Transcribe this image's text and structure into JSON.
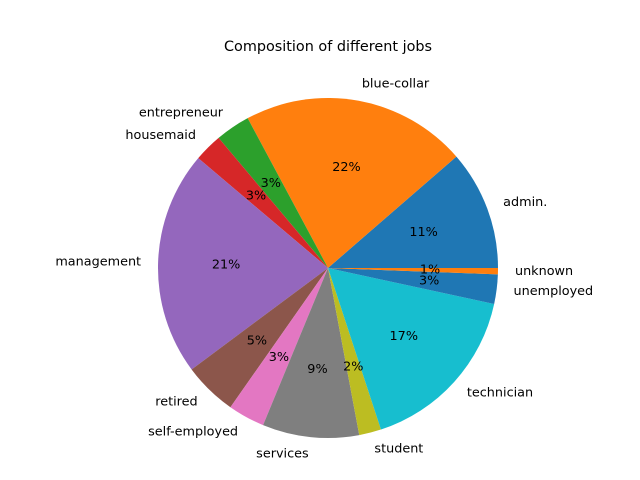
{
  "chart_data": {
    "type": "pie",
    "title": "Composition of different jobs",
    "start_angle_deg": 0,
    "direction": "counterclockwise",
    "slices": [
      {
        "label": "admin.",
        "value": 11.4,
        "pct_label": "11%",
        "color": "#1f77b4"
      },
      {
        "label": "blue-collar",
        "value": 21.5,
        "pct_label": "22%",
        "color": "#ff7f0e"
      },
      {
        "label": "entrepreneur",
        "value": 3.3,
        "pct_label": "3%",
        "color": "#2ca02c"
      },
      {
        "label": "housemaid",
        "value": 2.7,
        "pct_label": "3%",
        "color": "#d62728"
      },
      {
        "label": "management",
        "value": 21.4,
        "pct_label": "21%",
        "color": "#9467bd"
      },
      {
        "label": "retired",
        "value": 5.1,
        "pct_label": "5%",
        "color": "#8c564b"
      },
      {
        "label": "self-employed",
        "value": 3.5,
        "pct_label": "3%",
        "color": "#e377c2"
      },
      {
        "label": "services",
        "value": 9.2,
        "pct_label": "9%",
        "color": "#7f7f7f"
      },
      {
        "label": "student",
        "value": 2.1,
        "pct_label": "2%",
        "color": "#bcbd22"
      },
      {
        "label": "technician",
        "value": 16.6,
        "pct_label": "17%",
        "color": "#17becf"
      },
      {
        "label": "unemployed",
        "value": 2.8,
        "pct_label": "3%",
        "color": "#1f77b4"
      },
      {
        "label": "unknown",
        "value": 0.6,
        "pct_label": "1%",
        "color": "#ff7f0e"
      }
    ]
  }
}
